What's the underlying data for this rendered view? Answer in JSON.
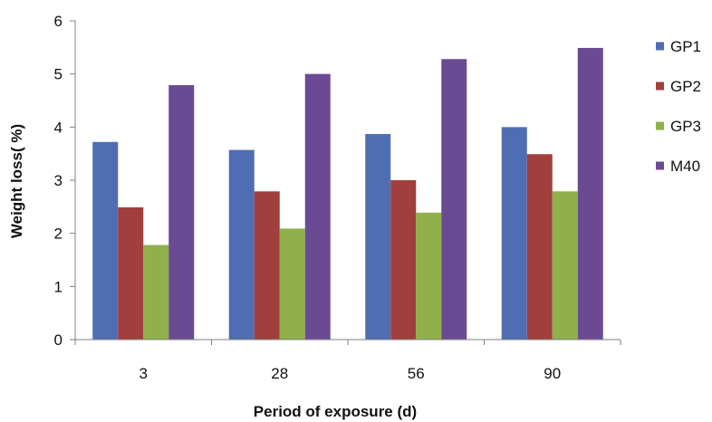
{
  "chart_data": {
    "type": "bar",
    "title": "",
    "xlabel": "Period of exposure (d)",
    "ylabel": "Weight loss( %)",
    "categories": [
      "3",
      "28",
      "56",
      "90"
    ],
    "ylim": [
      0,
      6
    ],
    "yticks": [
      "0",
      "1",
      "2",
      "3",
      "4",
      "5",
      "6"
    ],
    "grid": false,
    "legend_position": "right",
    "series": [
      {
        "name": "GP1",
        "color": "#4f6db3",
        "values": [
          3.72,
          3.57,
          3.87,
          4.0
        ]
      },
      {
        "name": "GP2",
        "color": "#a03f3d",
        "values": [
          2.49,
          2.79,
          3.0,
          3.49
        ]
      },
      {
        "name": "GP3",
        "color": "#8fb04a",
        "values": [
          1.78,
          2.09,
          2.39,
          2.79
        ]
      },
      {
        "name": "M40",
        "color": "#6a4b93",
        "values": [
          4.79,
          5.0,
          5.28,
          5.49
        ]
      }
    ]
  }
}
